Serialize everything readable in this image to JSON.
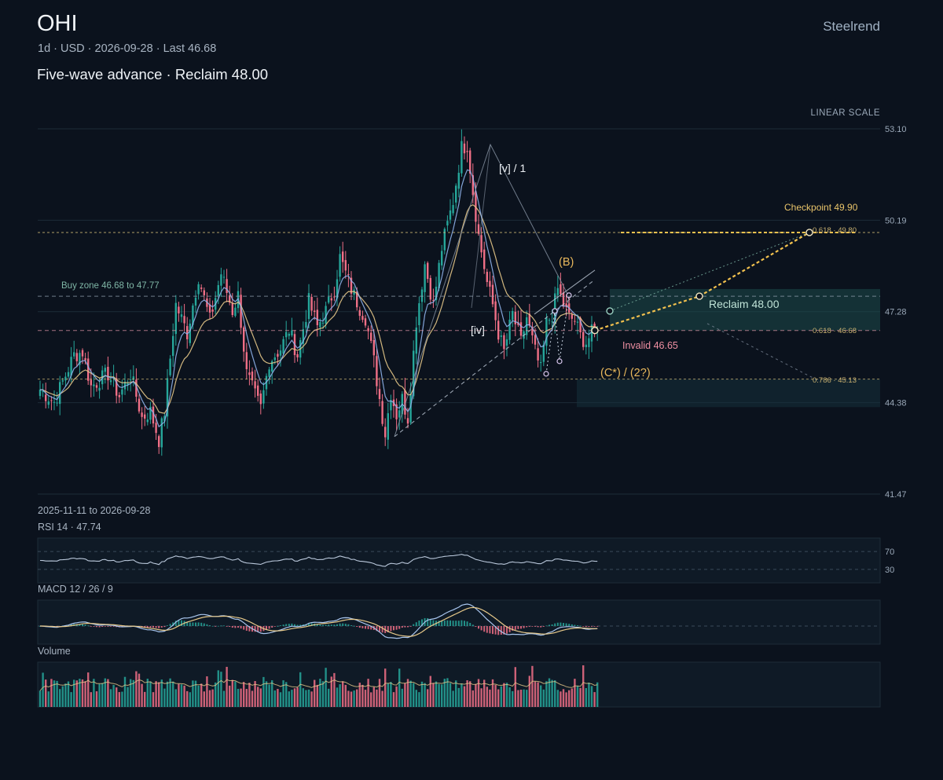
{
  "header": {
    "ticker": "OHI",
    "subtitle": "1d · USD · 2026-09-28 · Last 46.68",
    "headline": "Five-wave advance · Reclaim 48.00",
    "brand": "Steelrend",
    "scale_label": "LINEAR SCALE",
    "date_range": "2025-11-11 to 2026-09-28"
  },
  "panels": {
    "rsi_label": "RSI 14 · 47.74",
    "macd_label": "MACD 12 / 26 / 9",
    "volume_label": "Volume"
  },
  "colors": {
    "background": "#0b121d",
    "up": "#26a69a",
    "down": "#ef6f86",
    "ma_fast": "#8fb4ec",
    "ma_slow": "#e7c98a",
    "accent": "#f2c14e",
    "zone": "#1e4a4a",
    "text_muted": "#a8b4c2"
  },
  "chart_data": {
    "type": "candlestick",
    "y_ticks": [
      53.1,
      50.19,
      47.28,
      44.38,
      41.47
    ],
    "ylim": [
      41.47,
      53.1
    ],
    "rsi_levels": [
      70,
      30
    ],
    "last": 46.68,
    "anchors": [
      [
        0,
        44.8
      ],
      [
        5,
        44.4
      ],
      [
        12,
        45.9
      ],
      [
        15,
        46.0
      ],
      [
        18,
        44.9
      ],
      [
        24,
        45.3
      ],
      [
        28,
        44.6
      ],
      [
        32,
        45.3
      ],
      [
        36,
        43.9
      ],
      [
        39,
        44.1
      ],
      [
        42,
        43.2
      ],
      [
        44,
        44.1
      ],
      [
        48,
        47.5
      ],
      [
        52,
        46.6
      ],
      [
        56,
        48.4
      ],
      [
        60,
        47.0
      ],
      [
        64,
        48.5
      ],
      [
        68,
        47.3
      ],
      [
        70,
        47.8
      ],
      [
        73,
        45.3
      ],
      [
        76,
        44.6
      ],
      [
        78,
        44.2
      ],
      [
        81,
        45.7
      ],
      [
        85,
        46.1
      ],
      [
        88,
        46.7
      ],
      [
        91,
        45.9
      ],
      [
        95,
        47.6
      ],
      [
        98,
        46.8
      ],
      [
        101,
        47.3
      ],
      [
        104,
        48.0
      ],
      [
        106,
        49.0
      ],
      [
        110,
        48.0
      ],
      [
        113,
        47.4
      ],
      [
        115,
        47.1
      ],
      [
        118,
        45.7
      ],
      [
        120,
        44.5
      ],
      [
        122,
        43.4
      ],
      [
        124,
        44.7
      ],
      [
        126,
        44.0
      ],
      [
        128,
        44.5
      ],
      [
        130,
        43.9
      ],
      [
        133,
        47.0
      ],
      [
        136,
        48.8
      ],
      [
        139,
        47.5
      ],
      [
        142,
        49.3
      ],
      [
        146,
        50.8
      ],
      [
        149,
        52.5
      ],
      [
        151,
        52.6
      ],
      [
        153,
        51.1
      ],
      [
        155,
        49.7
      ],
      [
        158,
        48.2
      ],
      [
        160,
        47.5
      ],
      [
        162,
        46.6
      ],
      [
        164,
        46.0
      ],
      [
        167,
        47.2
      ],
      [
        170,
        46.3
      ],
      [
        172,
        47.1
      ],
      [
        175,
        46.0
      ],
      [
        177,
        45.4
      ],
      [
        179,
        46.9
      ],
      [
        181,
        47.2
      ],
      [
        183,
        48.0
      ],
      [
        185,
        47.5
      ],
      [
        187,
        47.1
      ],
      [
        189,
        47.0
      ],
      [
        191,
        46.5
      ],
      [
        193,
        46.3
      ],
      [
        195,
        46.6
      ],
      [
        197,
        46.68
      ]
    ],
    "indicators": [
      "MA fast",
      "MA slow",
      "RSI 14",
      "MACD 12/26/9",
      "Volume"
    ]
  },
  "annotations": {
    "wave_v": "[v] / 1",
    "wave_iv": "[iv]",
    "wave_B": "(B)",
    "wave_C": "(C*) / (2?)",
    "buy_zone": "Buy zone 46.68 to 47.77",
    "reclaim": "Reclaim 48.00",
    "invalid": "Invalid 46.65",
    "checkpoint": "Checkpoint 49.90",
    "fib_618_upper": "0.618 · 49.80",
    "fib_618_lower": "0.618 · 46.68",
    "fib_786": "0.786 · 45.13"
  }
}
